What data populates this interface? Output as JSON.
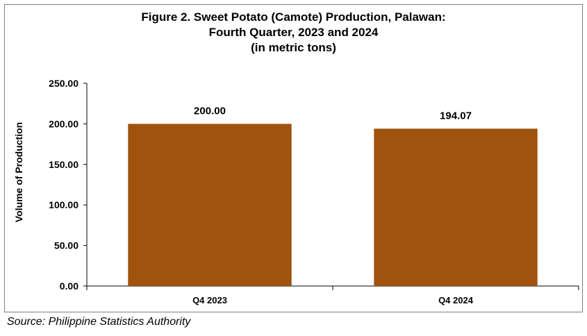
{
  "chart_data": {
    "type": "bar",
    "title": [
      "Figure 2. Sweet Potato (Camote) Production, Palawan:",
      "Fourth Quarter, 2023 and 2024",
      "(in metric tons)"
    ],
    "categories": [
      "Q4 2023",
      "Q4 2024"
    ],
    "values": [
      200.0,
      194.07
    ],
    "value_labels": [
      "200.00",
      "194.07"
    ],
    "ylabel": "Volume of Production",
    "xlabel": "",
    "ylim": [
      0,
      250
    ],
    "yticks": [
      0,
      50,
      100,
      150,
      200,
      250
    ],
    "ytick_labels": [
      "0.00",
      "50.00",
      "100.00",
      "150.00",
      "200.00",
      "250.00"
    ],
    "grid": false,
    "legend": "none",
    "bar_color": "#A0530F"
  },
  "source": "Source: Philippine Statistics Authority"
}
